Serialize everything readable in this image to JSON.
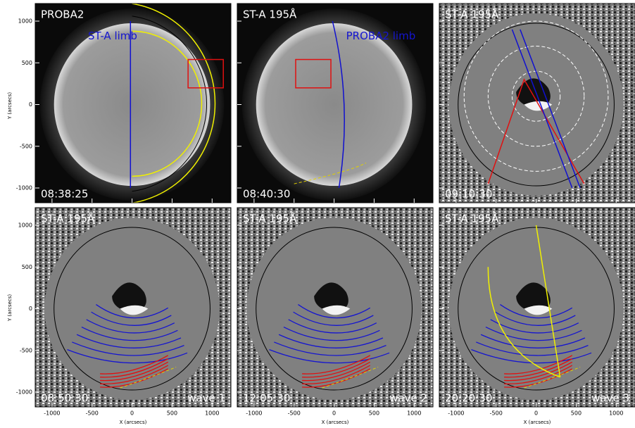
{
  "chart_data": {
    "type": "image",
    "xlabel": "X (arcsecs)",
    "ylabel": "Y (arcsecs)",
    "xlim": [
      -1210,
      1235
    ],
    "ylim": [
      -1177,
      1211
    ],
    "xticks": [
      -1000,
      -500,
      0,
      500,
      1000
    ],
    "yticks": [
      -1000,
      -500,
      0,
      500,
      1000
    ],
    "panels": [
      {
        "label": "PROBA2",
        "limb_label": "ST-A limb",
        "time": "08:38:25"
      },
      {
        "label": "ST-A 195Å",
        "limb_label": "PROBA2 limb",
        "time": "08:40:30"
      },
      {
        "label": "ST-A 195Å",
        "time": "09:10:30"
      },
      {
        "label": "ST-A 195Å",
        "time": "08:50:30",
        "wave": "wave 1"
      },
      {
        "label": "ST-A 195Å",
        "time": "12:05:30",
        "wave": "wave 2"
      },
      {
        "label": "ST-A 195Å",
        "time": "20:20:30",
        "wave": "wave 3"
      }
    ]
  }
}
